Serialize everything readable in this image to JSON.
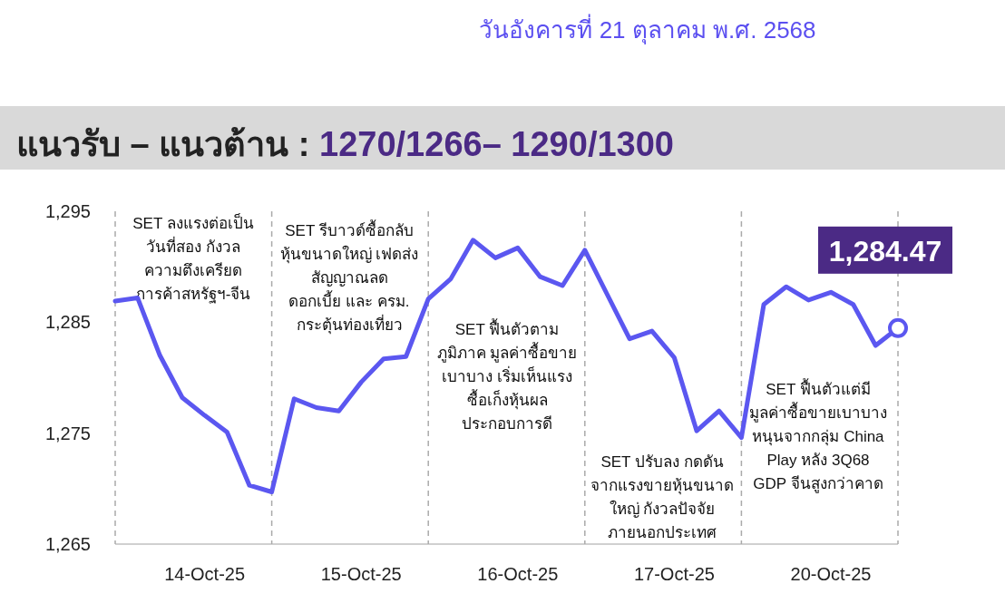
{
  "chart_data": {
    "type": "line",
    "title": "แนวรับ – แนวต้าน : 1270/1266– 1290/1300",
    "subtitle": "วันอังคารที่ 21 ตุลาคม พ.ศ. 2568",
    "categories": [
      null,
      null,
      null,
      null,
      "14-Oct-25",
      null,
      null,
      null,
      null,
      null,
      null,
      "15-Oct-25",
      null,
      null,
      null,
      null,
      null,
      null,
      "16-Oct-25",
      null,
      null,
      null,
      null,
      null,
      null,
      "17-Oct-25",
      null,
      null,
      null,
      null,
      null,
      null,
      "20-Oct-25",
      null,
      null,
      null
    ],
    "series": [
      {
        "color": "#5b57f0",
        "values": [
          1286.9,
          1287.2,
          1282.0,
          1278.2,
          1276.6,
          1275.1,
          1270.3,
          1269.7,
          1278.1,
          1277.3,
          1277.0,
          1279.6,
          1281.7,
          1281.9,
          1287.1,
          1288.9,
          1292.4,
          1290.8,
          1291.7,
          1289.1,
          1288.3,
          1291.5,
          1287.5,
          1283.5,
          1284.2,
          1281.8,
          1275.2,
          1277.0,
          1274.6,
          1286.6,
          1288.2,
          1287.0,
          1287.7,
          1286.6,
          1282.9,
          1284.47
        ],
        "value_labels": [
          null,
          null,
          null,
          null,
          null,
          null,
          null,
          null,
          null,
          null,
          null,
          null,
          null,
          null,
          null,
          null,
          null,
          null,
          null,
          null,
          null,
          null,
          null,
          null,
          null,
          null,
          null,
          null,
          null,
          null,
          null,
          null,
          null,
          null,
          null,
          "1,284.47"
        ]
      }
    ],
    "ylim": [
      1265,
      1295
    ],
    "yticks": [
      {
        "value": 1265,
        "label": "1,265"
      },
      {
        "value": 1275,
        "label": "1,275"
      },
      {
        "value": 1285,
        "label": "1,285"
      },
      {
        "value": 1295,
        "label": "1,295"
      }
    ],
    "annotations": [
      "SET ลงแรงต่อเป็น\nวันที่สอง กังวล\nความตึงเครียด\nการค้าสหรัฐฯ-จีน",
      "SET รีบาวด์ซื้อกลับ\nหุ้นขนาดใหญ่ เฟดส่ง\nสัญญาณลด\nดอกเบี้ย และ ครม.\nกระตุ้นท่องเที่ยว",
      "SET ฟื้นตัวตาม\nภูมิภาค มูลค่าซื้อขาย\nเบาบาง เริ่มเห็นแรง\nซื้อเก็งหุ้นผล\nประกอบการดี",
      "SET ปรับลง กดดัน\nจากแรงขายหุ้นขนาด\nใหญ่ กังวลปัจจัย\nภายนอกประเทศ",
      "SET ฟื้นตัวแต่มี\nมูลค่าซื้อขายเบาบาง\nหนุนจากกลุ่ม China\nPlay หลัง 3Q68\nGDP จีนสูงกว่าคาด"
    ],
    "grid": "x"
  }
}
